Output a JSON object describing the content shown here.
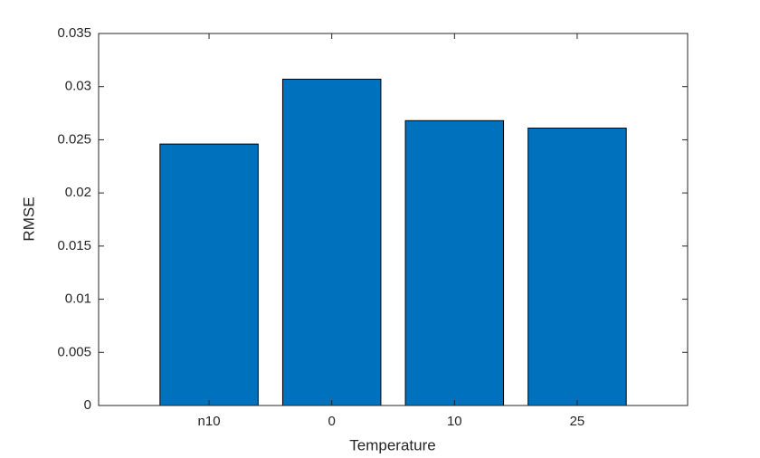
{
  "chart_data": {
    "type": "bar",
    "x_label": "Temperature",
    "y_label": "RMSE",
    "categories": [
      "n10",
      "0",
      "10",
      "25"
    ],
    "values": [
      0.0246,
      0.0307,
      0.0268,
      0.0261
    ],
    "color": "#0072bd",
    "ylim": [
      0,
      0.035
    ],
    "yticks": [
      0,
      0.005,
      0.01,
      0.015,
      0.02,
      0.025,
      0.03,
      0.035
    ],
    "grid": false
  }
}
